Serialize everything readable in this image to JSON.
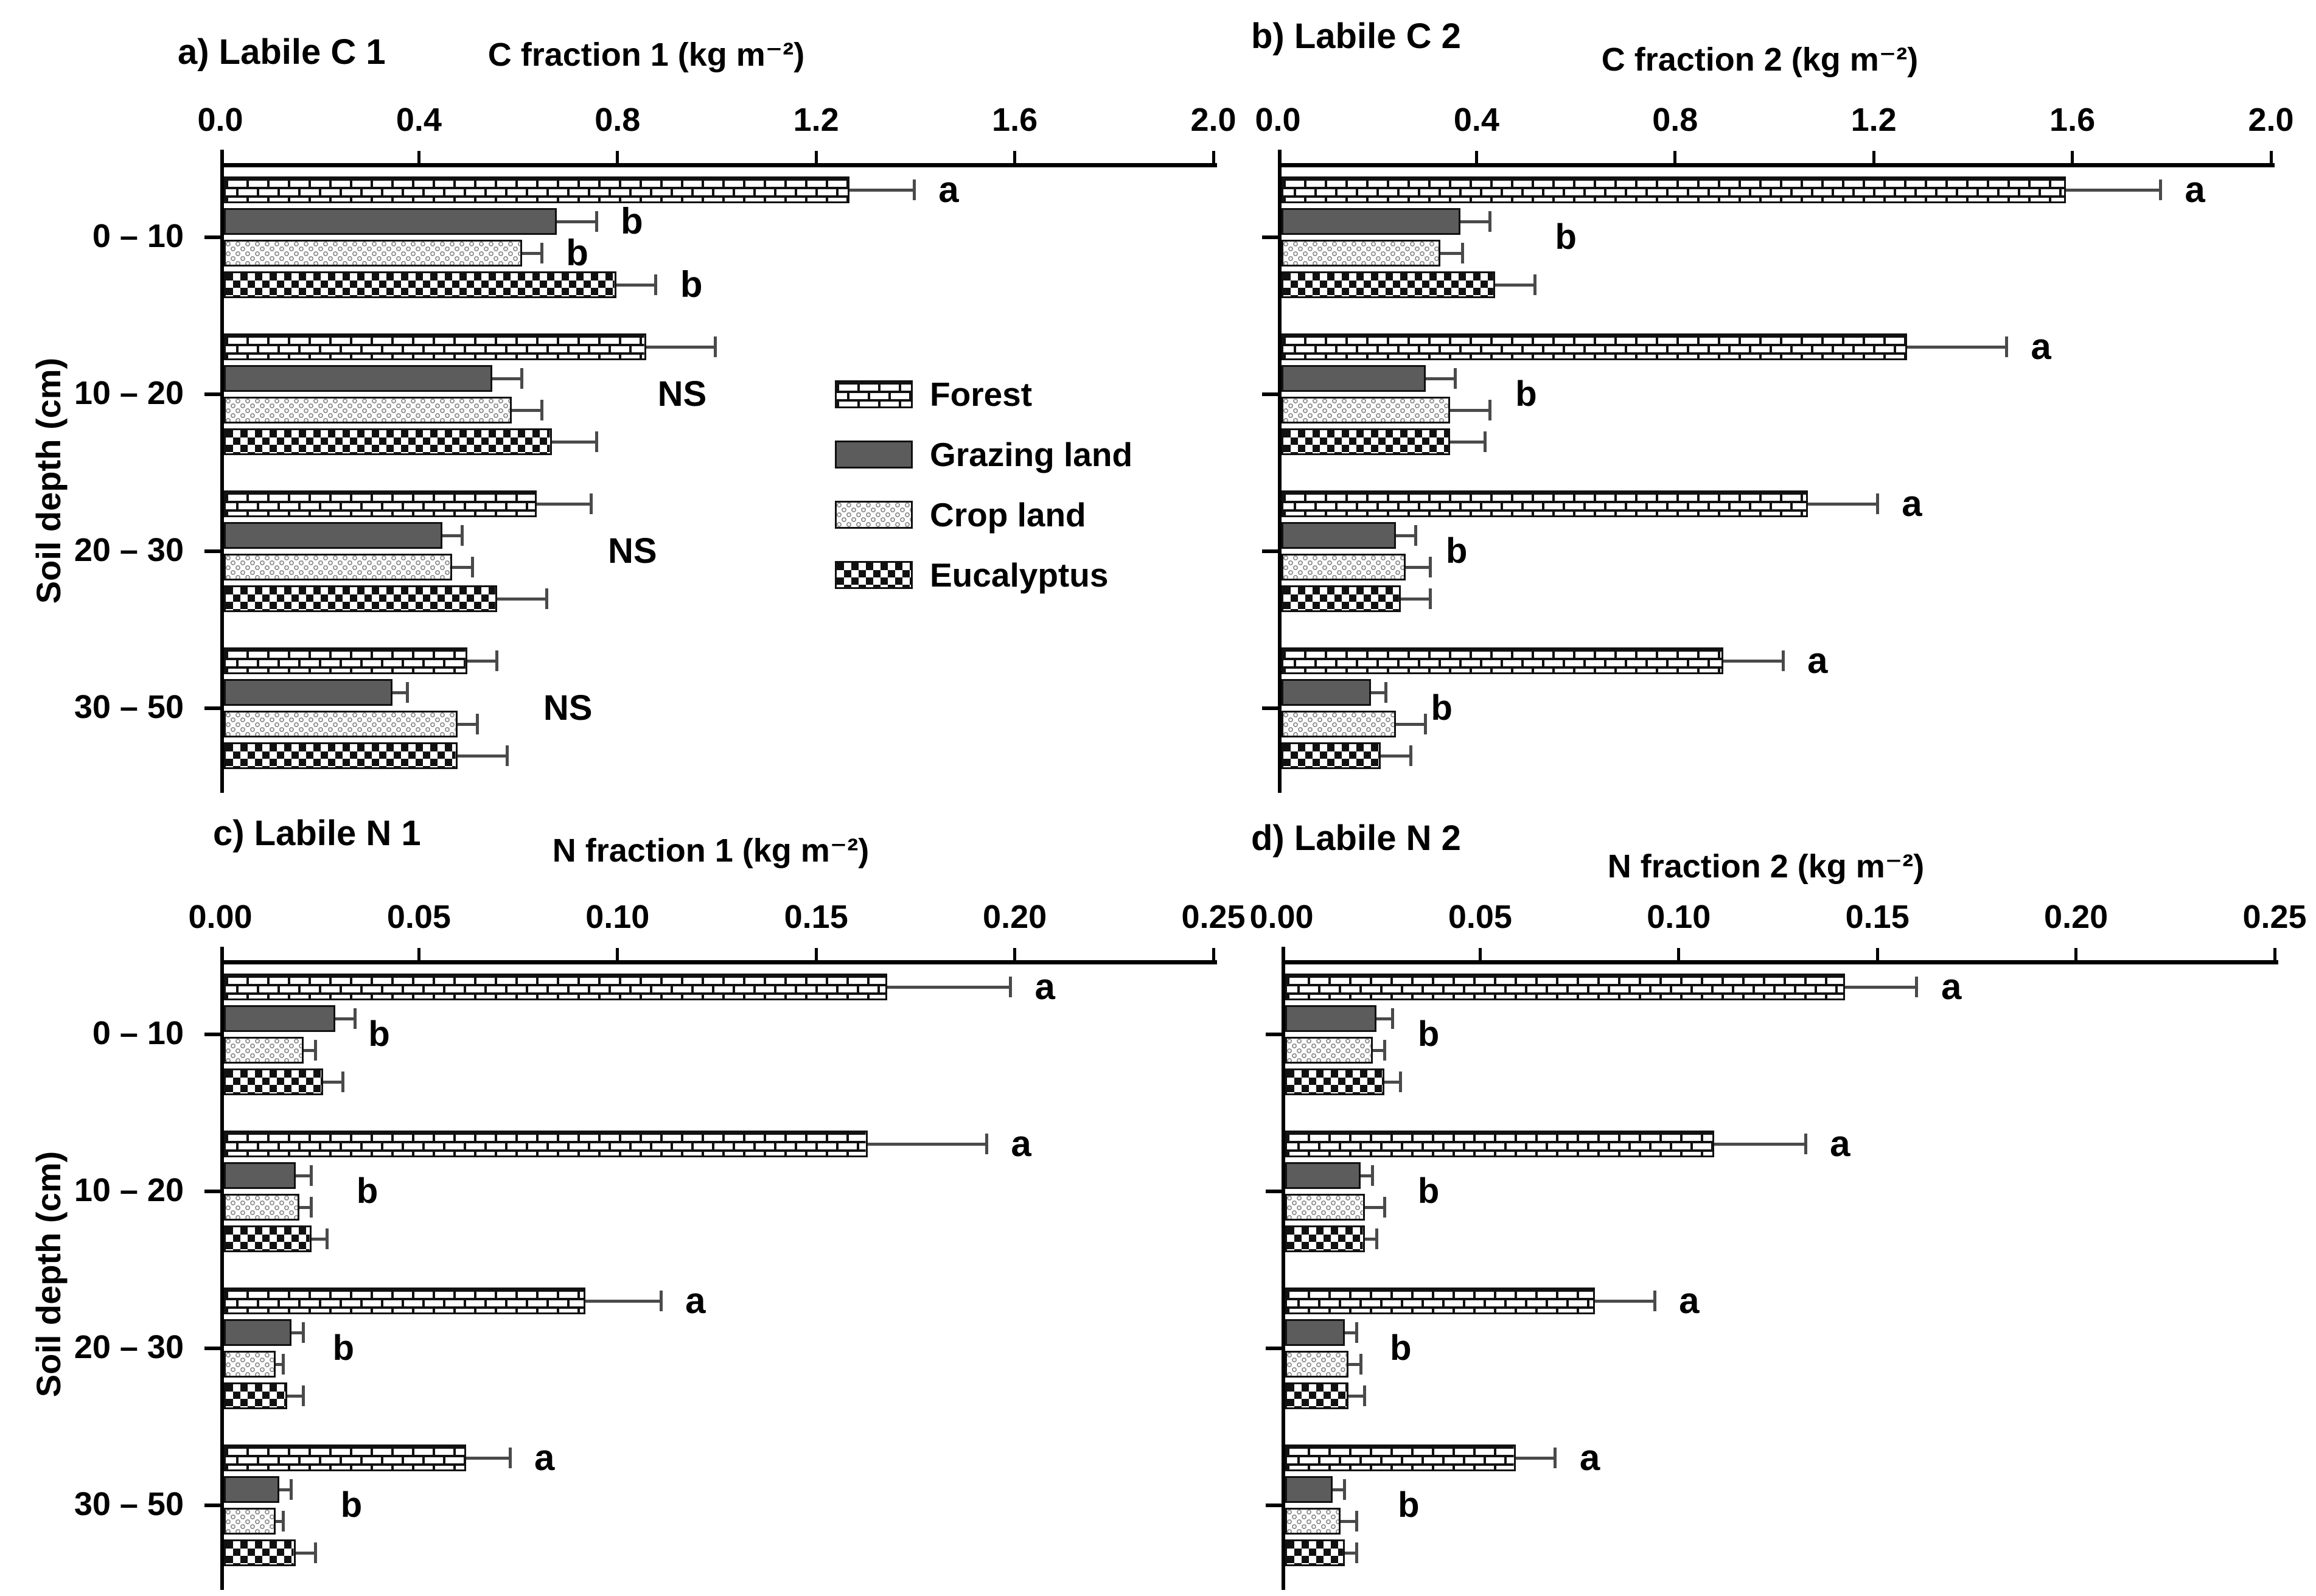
{
  "chart_data": {
    "type": "bar",
    "orientation": "horizontal",
    "ylabel": "Soil depth (cm)",
    "categories": [
      "0 – 10",
      "10 – 20",
      "20 – 30",
      "30 – 50"
    ],
    "series_names": [
      "Forest",
      "Grazing land",
      "Crop land",
      "Eucalyptus"
    ],
    "legend": [
      {
        "label": "Forest",
        "pattern": "brick"
      },
      {
        "label": "Grazing land",
        "pattern": "solid"
      },
      {
        "label": "Crop land",
        "pattern": "rings"
      },
      {
        "label": "Eucalyptus",
        "pattern": "checker"
      }
    ],
    "significance_note_values": [
      "a",
      "b",
      "NS"
    ],
    "panels": [
      {
        "id": "a",
        "title": "a) Labile C 1",
        "xlabel": "C fraction 1 (kg m⁻²)",
        "xlim": [
          0.0,
          2.0
        ],
        "ticks": [
          "0.0",
          "0.4",
          "0.8",
          "1.2",
          "1.6",
          "2.0"
        ],
        "groups": [
          {
            "depth": "0 – 10",
            "bars": [
              {
                "series": "Forest",
                "value": 1.26,
                "err": 0.13,
                "letter": "a"
              },
              {
                "series": "Grazing land",
                "value": 0.67,
                "err": 0.08,
                "letter": "b"
              },
              {
                "series": "Crop land",
                "value": 0.6,
                "err": 0.04,
                "letter": "b"
              },
              {
                "series": "Eucalyptus",
                "value": 0.79,
                "err": 0.08,
                "letter": "b"
              }
            ]
          },
          {
            "depth": "10 – 20",
            "note": {
              "text": "NS",
              "x": 0.93
            },
            "bars": [
              {
                "series": "Forest",
                "value": 0.85,
                "err": 0.14
              },
              {
                "series": "Grazing land",
                "value": 0.54,
                "err": 0.06
              },
              {
                "series": "Crop land",
                "value": 0.58,
                "err": 0.06
              },
              {
                "series": "Eucalyptus",
                "value": 0.66,
                "err": 0.09
              }
            ]
          },
          {
            "depth": "20 – 30",
            "note": {
              "text": "NS",
              "x": 0.83
            },
            "bars": [
              {
                "series": "Forest",
                "value": 0.63,
                "err": 0.11
              },
              {
                "series": "Grazing land",
                "value": 0.44,
                "err": 0.04
              },
              {
                "series": "Crop land",
                "value": 0.46,
                "err": 0.04
              },
              {
                "series": "Eucalyptus",
                "value": 0.55,
                "err": 0.1
              }
            ]
          },
          {
            "depth": "30 – 50",
            "note": {
              "text": "NS",
              "x": 0.7
            },
            "bars": [
              {
                "series": "Forest",
                "value": 0.49,
                "err": 0.06
              },
              {
                "series": "Grazing land",
                "value": 0.34,
                "err": 0.03
              },
              {
                "series": "Crop land",
                "value": 0.47,
                "err": 0.04
              },
              {
                "series": "Eucalyptus",
                "value": 0.47,
                "err": 0.1
              }
            ]
          }
        ]
      },
      {
        "id": "b",
        "title": "b) Labile C 2",
        "xlabel": "C fraction 2 (kg m⁻²)",
        "xlim": [
          0.0,
          2.0
        ],
        "ticks": [
          "0.0",
          "0.4",
          "0.8",
          "1.2",
          "1.6",
          "2.0"
        ],
        "groups": [
          {
            "depth": "0 – 10",
            "note": {
              "text": "b",
              "x": 0.58
            },
            "bars": [
              {
                "series": "Forest",
                "value": 1.58,
                "err": 0.19,
                "letter": "a"
              },
              {
                "series": "Grazing land",
                "value": 0.36,
                "err": 0.06
              },
              {
                "series": "Crop land",
                "value": 0.32,
                "err": 0.045
              },
              {
                "series": "Eucalyptus",
                "value": 0.43,
                "err": 0.08
              }
            ]
          },
          {
            "depth": "10 – 20",
            "note": {
              "text": "b",
              "x": 0.5
            },
            "bars": [
              {
                "series": "Forest",
                "value": 1.26,
                "err": 0.2,
                "letter": "a"
              },
              {
                "series": "Grazing land",
                "value": 0.29,
                "err": 0.06
              },
              {
                "series": "Crop land",
                "value": 0.34,
                "err": 0.08
              },
              {
                "series": "Eucalyptus",
                "value": 0.34,
                "err": 0.07
              }
            ]
          },
          {
            "depth": "20 – 30",
            "note": {
              "text": "b",
              "x": 0.36
            },
            "bars": [
              {
                "series": "Forest",
                "value": 1.06,
                "err": 0.14,
                "letter": "a"
              },
              {
                "series": "Grazing land",
                "value": 0.23,
                "err": 0.04
              },
              {
                "series": "Crop land",
                "value": 0.25,
                "err": 0.05
              },
              {
                "series": "Eucalyptus",
                "value": 0.24,
                "err": 0.06
              }
            ]
          },
          {
            "depth": "30 – 50",
            "note": {
              "text": "b",
              "x": 0.33
            },
            "bars": [
              {
                "series": "Forest",
                "value": 0.89,
                "err": 0.12,
                "letter": "a"
              },
              {
                "series": "Grazing land",
                "value": 0.18,
                "err": 0.03
              },
              {
                "series": "Crop land",
                "value": 0.23,
                "err": 0.06
              },
              {
                "series": "Eucalyptus",
                "value": 0.2,
                "err": 0.06
              }
            ]
          }
        ]
      },
      {
        "id": "c",
        "title": "c) Labile N 1",
        "xlabel": "N fraction 1 (kg m⁻²)",
        "xlim": [
          0.0,
          0.25
        ],
        "ticks": [
          "0.00",
          "0.05",
          "0.10",
          "0.15",
          "0.20",
          "0.25"
        ],
        "groups": [
          {
            "depth": "0 – 10",
            "note": {
              "text": "b",
              "x": 0.04
            },
            "bars": [
              {
                "series": "Forest",
                "value": 0.167,
                "err": 0.031,
                "letter": "a"
              },
              {
                "series": "Grazing land",
                "value": 0.028,
                "err": 0.005
              },
              {
                "series": "Crop land",
                "value": 0.02,
                "err": 0.003
              },
              {
                "series": "Eucalyptus",
                "value": 0.025,
                "err": 0.005
              }
            ]
          },
          {
            "depth": "10 – 20",
            "note": {
              "text": "b",
              "x": 0.037
            },
            "bars": [
              {
                "series": "Forest",
                "value": 0.162,
                "err": 0.03,
                "letter": "a"
              },
              {
                "series": "Grazing land",
                "value": 0.018,
                "err": 0.004
              },
              {
                "series": "Crop land",
                "value": 0.019,
                "err": 0.003
              },
              {
                "series": "Eucalyptus",
                "value": 0.022,
                "err": 0.004
              }
            ]
          },
          {
            "depth": "20 – 30",
            "note": {
              "text": "b",
              "x": 0.031
            },
            "bars": [
              {
                "series": "Forest",
                "value": 0.091,
                "err": 0.019,
                "letter": "a"
              },
              {
                "series": "Grazing land",
                "value": 0.017,
                "err": 0.003
              },
              {
                "series": "Crop land",
                "value": 0.013,
                "err": 0.002
              },
              {
                "series": "Eucalyptus",
                "value": 0.016,
                "err": 0.004
              }
            ]
          },
          {
            "depth": "30 – 50",
            "note": {
              "text": "b",
              "x": 0.033
            },
            "bars": [
              {
                "series": "Forest",
                "value": 0.061,
                "err": 0.011,
                "letter": "a"
              },
              {
                "series": "Grazing land",
                "value": 0.014,
                "err": 0.003
              },
              {
                "series": "Crop land",
                "value": 0.013,
                "err": 0.002
              },
              {
                "series": "Eucalyptus",
                "value": 0.018,
                "err": 0.005
              }
            ]
          }
        ]
      },
      {
        "id": "d",
        "title": "d) Labile N 2",
        "xlabel": "N fraction 2 (kg m⁻²)",
        "xlim": [
          0.0,
          0.25
        ],
        "ticks": [
          "0.00",
          "0.05",
          "0.10",
          "0.15",
          "0.20",
          "0.25"
        ],
        "groups": [
          {
            "depth": "0 – 10",
            "note": {
              "text": "b",
              "x": 0.037
            },
            "bars": [
              {
                "series": "Forest",
                "value": 0.141,
                "err": 0.018,
                "letter": "a"
              },
              {
                "series": "Grazing land",
                "value": 0.023,
                "err": 0.004
              },
              {
                "series": "Crop land",
                "value": 0.022,
                "err": 0.003
              },
              {
                "series": "Eucalyptus",
                "value": 0.025,
                "err": 0.004
              }
            ]
          },
          {
            "depth": "10 – 20",
            "note": {
              "text": "b",
              "x": 0.037
            },
            "bars": [
              {
                "series": "Forest",
                "value": 0.108,
                "err": 0.023,
                "letter": "a"
              },
              {
                "series": "Grazing land",
                "value": 0.019,
                "err": 0.003
              },
              {
                "series": "Crop land",
                "value": 0.02,
                "err": 0.005
              },
              {
                "series": "Eucalyptus",
                "value": 0.02,
                "err": 0.003
              }
            ]
          },
          {
            "depth": "20 – 30",
            "note": {
              "text": "b",
              "x": 0.03
            },
            "bars": [
              {
                "series": "Forest",
                "value": 0.078,
                "err": 0.015,
                "letter": "a"
              },
              {
                "series": "Grazing land",
                "value": 0.015,
                "err": 0.003
              },
              {
                "series": "Crop land",
                "value": 0.016,
                "err": 0.003
              },
              {
                "series": "Eucalyptus",
                "value": 0.016,
                "err": 0.004
              }
            ]
          },
          {
            "depth": "30 – 50",
            "note": {
              "text": "b",
              "x": 0.032
            },
            "bars": [
              {
                "series": "Forest",
                "value": 0.058,
                "err": 0.01,
                "letter": "a"
              },
              {
                "series": "Grazing land",
                "value": 0.012,
                "err": 0.003
              },
              {
                "series": "Crop land",
                "value": 0.014,
                "err": 0.004
              },
              {
                "series": "Eucalyptus",
                "value": 0.015,
                "err": 0.003
              }
            ]
          }
        ]
      }
    ]
  }
}
